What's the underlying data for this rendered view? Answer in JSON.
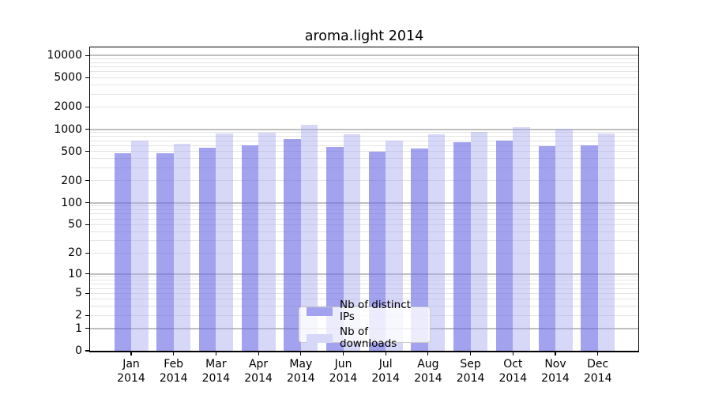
{
  "title": "aroma.light 2014",
  "legend": {
    "items": [
      {
        "label": "Nb of distinct IPs",
        "swatch_color": "#a2a2ef"
      },
      {
        "label": "Nb of downloads",
        "swatch_color": "#d7d7f7"
      }
    ],
    "position": "lower center"
  },
  "colors": {
    "bar_distinct_ips": "rgba(105,105,229,0.62)",
    "bar_downloads": "rgba(164,164,237,0.44)",
    "grid_minor": "#e4e4e4",
    "grid_major": "#bfbfbf",
    "axis": "#000000",
    "background": "#ffffff"
  },
  "chart_data": {
    "type": "bar",
    "title": "aroma.light 2014",
    "categories": [
      "Jan 2014",
      "Feb 2014",
      "Mar 2014",
      "Apr 2014",
      "May 2014",
      "Jun 2014",
      "Jul 2014",
      "Aug 2014",
      "Sep 2014",
      "Oct 2014",
      "Nov 2014",
      "Dec 2014"
    ],
    "series": [
      {
        "name": "Nb of distinct IPs",
        "values": [
          480,
          485,
          580,
          620,
          750,
          590,
          508,
          560,
          690,
          720,
          600,
          620
        ]
      },
      {
        "name": "Nb of downloads",
        "values": [
          720,
          650,
          900,
          925,
          1165,
          870,
          710,
          875,
          945,
          1095,
          1030,
          900
        ]
      }
    ],
    "yscale": "log10(1+x)",
    "y_ticks": [
      0,
      1,
      2,
      5,
      10,
      20,
      50,
      100,
      200,
      500,
      1000,
      2000,
      5000,
      10000
    ],
    "ylim": [
      0,
      12800
    ],
    "grid": true,
    "legend_position": "lower center"
  }
}
